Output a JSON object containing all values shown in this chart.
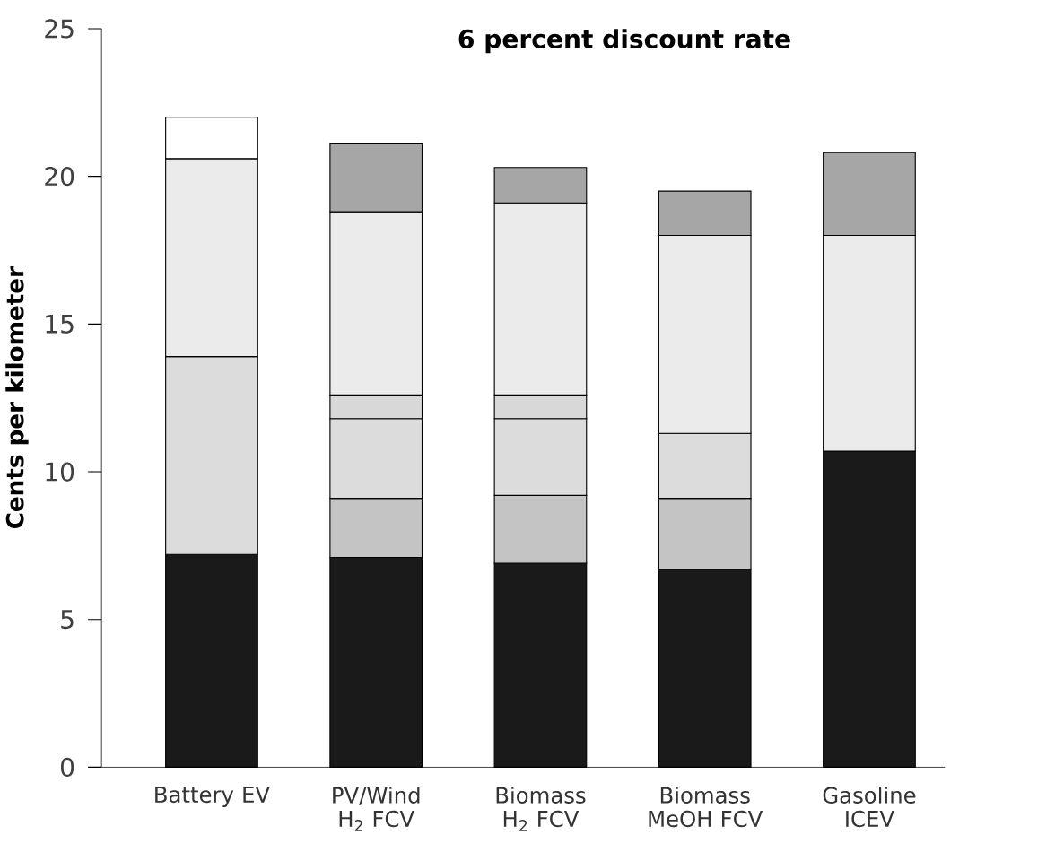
{
  "chart_data": {
    "type": "bar",
    "stacked": true,
    "title": "6 percent discount rate",
    "ylabel": "Cents per kilometer",
    "categories": [
      "Battery EV",
      "PV/Wind H$_{2}$ FCV",
      "Biomass H$_{2}$ FCV",
      "Biomass MeOH FCV",
      "Gasoline ICEV"
    ],
    "series": [
      {
        "color": "#1a1a1a",
        "values": [
          7.2,
          7.1,
          6.9,
          6.7,
          10.7
        ]
      },
      {
        "color": "#c4c4c4",
        "values": [
          null,
          2.0,
          2.3,
          2.4,
          null
        ]
      },
      {
        "color": "#dcdcdc",
        "values": [
          6.7,
          2.7,
          2.6,
          2.2,
          null
        ]
      },
      {
        "color": "#d8d8d8",
        "values": [
          null,
          0.8,
          0.8,
          null,
          null
        ]
      },
      {
        "color": "#ebebeb",
        "values": [
          6.7,
          6.2,
          6.5,
          6.7,
          7.3
        ]
      },
      {
        "color": "#a6a6a6",
        "values": [
          null,
          2.3,
          1.2,
          1.5,
          2.8
        ]
      },
      {
        "color": "#ffffff",
        "values": [
          1.4,
          null,
          null,
          null,
          null
        ]
      }
    ],
    "ylim": [
      0,
      25
    ],
    "yticks": [
      0,
      5,
      10,
      15,
      20,
      25
    ],
    "grid": false
  }
}
